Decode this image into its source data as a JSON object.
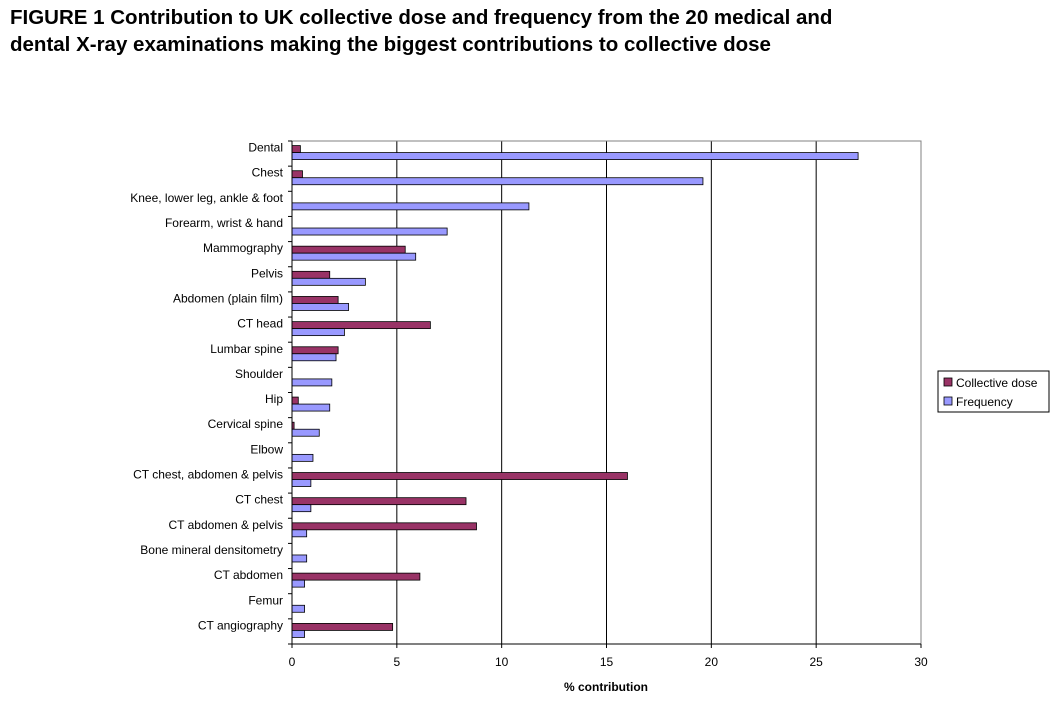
{
  "title": {
    "line1": "FIGURE 1  Contribution to UK collective dose and frequency from the 20 medical and",
    "line2": "dental X-ray examinations making the biggest contributions to collective dose"
  },
  "colors": {
    "collective_dose": "#993366",
    "frequency": "#9999FF",
    "gridline": "#000000",
    "background": "#ffffff"
  },
  "chart_data": {
    "type": "bar",
    "orientation": "horizontal",
    "categories": [
      "Dental",
      "Chest",
      "Knee, lower leg, ankle & foot",
      "Forearm, wrist & hand",
      "Mammography",
      "Pelvis",
      "Abdomen (plain film)",
      "CT head",
      "Lumbar spine",
      "Shoulder",
      "Hip",
      "Cervical spine",
      "Elbow",
      "CT chest, abdomen & pelvis",
      "CT chest",
      "CT abdomen & pelvis",
      "Bone mineral densitometry",
      "CT abdomen",
      "Femur",
      "CT angiography"
    ],
    "series": [
      {
        "name": "Collective dose",
        "values": [
          0.4,
          0.5,
          0,
          0,
          5.4,
          1.8,
          2.2,
          6.6,
          2.2,
          0,
          0.3,
          0.1,
          0,
          16.0,
          8.3,
          8.8,
          0,
          6.1,
          0,
          4.8
        ]
      },
      {
        "name": "Frequency",
        "values": [
          27.0,
          19.6,
          11.3,
          7.4,
          5.9,
          3.5,
          2.7,
          2.5,
          2.1,
          1.9,
          1.8,
          1.3,
          1.0,
          0.9,
          0.9,
          0.7,
          0.7,
          0.6,
          0.6,
          0.6
        ]
      }
    ],
    "xlabel": "% contribution",
    "ylabel": "",
    "xlim": [
      0,
      30
    ],
    "xticks": [
      0,
      5,
      10,
      15,
      20,
      25,
      30
    ],
    "xtick_labels": [
      "0",
      "5",
      "10",
      "15",
      "20",
      "25",
      "30"
    ],
    "grid": "vertical",
    "legend_placement": "right"
  }
}
